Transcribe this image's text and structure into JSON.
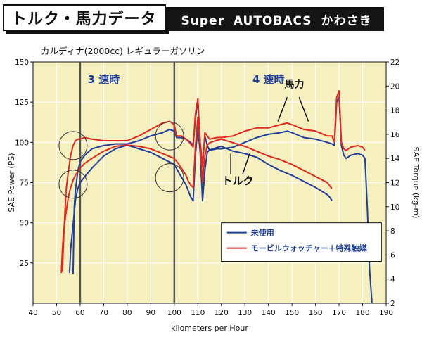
{
  "header": {
    "title": "トルク・馬力データ",
    "shop": "Super  AUTOBACS  かわさき"
  },
  "subtitle": "カルディナ(2000cc)  レギュラーガソリン",
  "colors": {
    "blue": "#1f3f9a",
    "red": "#e0281e",
    "plot_bg": "#f6efbf",
    "gear_text": "#2040a0"
  },
  "chart_data": {
    "type": "line",
    "xlabel": "kilometers per Hour",
    "ylabel": "SAE Power  (PS)",
    "y2label": "SAE Torque  (kg-m)",
    "xlim": [
      40,
      190
    ],
    "ylim": [
      0,
      150
    ],
    "y2lim": [
      2,
      22
    ],
    "x_ticks": [
      "40",
      "50",
      "60",
      "70",
      "80",
      "90",
      "100",
      "110",
      "120",
      "130",
      "140",
      "150",
      "160",
      "170",
      "180",
      "190"
    ],
    "y_ticks": [
      "150",
      "125",
      "100",
      "75",
      "50",
      "25"
    ],
    "y2_ticks": [
      "22",
      "20",
      "18",
      "16",
      "14",
      "12",
      "10",
      "8",
      "6",
      "4",
      "2"
    ],
    "gear_labels": [
      {
        "text": "3 速時",
        "x": 70
      },
      {
        "text": "4 速時",
        "x": 140
      }
    ],
    "gear_shift_lines": [
      60,
      100
    ],
    "annotations": {
      "power": "馬力",
      "torque": "トルク"
    },
    "legend": {
      "position": "bottom-right",
      "items": [
        "未使用",
        "モービルウォッチャー＋特殊触媒"
      ]
    },
    "series": [
      {
        "name": "未使用",
        "metric": "power",
        "color": "blue",
        "x": [
          57,
          57.5,
          58,
          58.5,
          59,
          60,
          62,
          65,
          70,
          75,
          80,
          85,
          90,
          95,
          98,
          100,
          101,
          103,
          105,
          107,
          108,
          109,
          110,
          111,
          112,
          113,
          114,
          115,
          118,
          120,
          125,
          130,
          135,
          140,
          145,
          148,
          150,
          155,
          160,
          165,
          167,
          168,
          169,
          170,
          171,
          172,
          173,
          175,
          178,
          180,
          181,
          182,
          183,
          184
        ],
        "y": [
          18,
          60,
          70,
          76,
          82,
          88,
          92,
          96,
          98,
          99,
          99,
          101,
          104,
          106,
          108,
          107,
          103,
          103,
          102,
          100,
          98,
          115,
          126,
          100,
          86,
          104,
          98,
          95,
          96,
          96,
          97,
          100,
          103,
          105,
          106,
          107,
          106,
          103,
          102,
          100,
          99,
          98,
          125,
          128,
          98,
          92,
          90,
          92,
          93,
          92,
          90,
          60,
          20,
          0
        ]
      },
      {
        "name": "モービルウォッチャー＋特殊触媒",
        "metric": "power",
        "color": "red",
        "x": [
          52.5,
          53,
          53.5,
          54,
          55,
          56,
          57,
          58,
          59,
          60,
          62,
          65,
          70,
          75,
          80,
          85,
          90,
          95,
          98,
          100,
          101,
          103,
          105,
          107,
          108,
          109,
          110,
          111,
          112,
          113,
          114,
          115,
          118,
          120,
          125,
          130,
          135,
          140,
          145,
          148,
          150,
          155,
          160,
          165,
          167,
          168,
          169,
          170,
          171,
          172,
          173,
          175,
          178,
          180,
          181
        ],
        "y": [
          20,
          40,
          55,
          70,
          82,
          92,
          98,
          101,
          102,
          102,
          103,
          102,
          101,
          101,
          101,
          104,
          108,
          112,
          113,
          111,
          104,
          104,
          102,
          99,
          97,
          118,
          127,
          100,
          85,
          106,
          104,
          102,
          103,
          103,
          104,
          107,
          109,
          109,
          111,
          112,
          111,
          108,
          107,
          104,
          104,
          100,
          128,
          132,
          100,
          96,
          95,
          97,
          98,
          97,
          95
        ]
      },
      {
        "name": "未使用",
        "metric": "torque",
        "color": "blue",
        "x": [
          55.5,
          56,
          56.5,
          57,
          57.5,
          58,
          59,
          60,
          62,
          65,
          70,
          75,
          80,
          85,
          90,
          95,
          100,
          102,
          105,
          106,
          107,
          108,
          109,
          110,
          111,
          112,
          113,
          114,
          115,
          118,
          120,
          125,
          130,
          135,
          140,
          145,
          150,
          155,
          160,
          165,
          166,
          167
        ],
        "y": [
          4.5,
          6.5,
          7.5,
          8.5,
          9.5,
          10.5,
          11.5,
          12,
          12.5,
          13.2,
          14.2,
          14.8,
          15.1,
          14.8,
          14.5,
          14,
          13.5,
          12.8,
          11.8,
          11.3,
          10.8,
          10.5,
          14.3,
          16.6,
          14.5,
          10.5,
          13,
          14.5,
          14.7,
          14.9,
          15,
          14.6,
          14.4,
          14.1,
          13.5,
          13,
          12.6,
          12.1,
          11.6,
          11,
          10.8,
          10.5
        ]
      },
      {
        "name": "モービルウォッチャー＋特殊触媒",
        "metric": "torque",
        "color": "red",
        "x": [
          52,
          52.5,
          53,
          54,
          55,
          56,
          57,
          58,
          60,
          62,
          65,
          70,
          75,
          80,
          85,
          90,
          95,
          100,
          102,
          105,
          106,
          107,
          108,
          109,
          110,
          111,
          112,
          113,
          114,
          115,
          118,
          120,
          125,
          130,
          135,
          140,
          145,
          150,
          155,
          160,
          165,
          167
        ],
        "y": [
          4.5,
          6.5,
          8,
          9.5,
          10.8,
          11.6,
          12.2,
          12.6,
          13.2,
          13.6,
          14,
          14.6,
          15,
          15.1,
          15,
          14.8,
          14.4,
          14,
          13.5,
          12.6,
          12.1,
          11.8,
          11.6,
          15,
          17.4,
          15,
          12,
          14.2,
          15.1,
          15.3,
          15.5,
          15.6,
          15.3,
          15,
          14.6,
          14.2,
          13.9,
          13.5,
          13,
          12.5,
          12,
          11.5
        ]
      }
    ]
  }
}
